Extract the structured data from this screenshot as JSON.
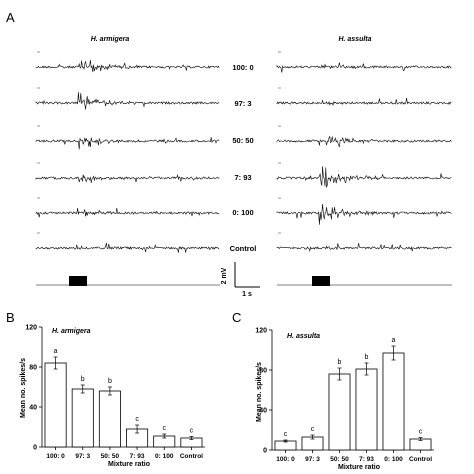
{
  "panels": {
    "A": "A",
    "B": "B",
    "C": "C"
  },
  "traces": {
    "left_species": "H. armigera",
    "right_species": "H. assulta",
    "ratios": [
      "100: 0",
      "97: 3",
      "50: 50",
      "7: 93",
      "0: 100",
      "Control"
    ],
    "scale_y": "2 mV",
    "scale_x": "1 s"
  },
  "chart_data": [
    {
      "type": "bar",
      "title": "H. armigera",
      "categories": [
        "100: 0",
        "97: 3",
        "50: 50",
        "7: 93",
        "0: 100",
        "Control"
      ],
      "values": [
        84,
        58,
        56,
        18,
        11,
        9
      ],
      "errors": [
        6,
        4,
        4,
        4,
        2,
        1.5
      ],
      "letters": [
        "a",
        "b",
        "b",
        "c",
        "c",
        "c"
      ],
      "xlabel": "Mixture ratio",
      "ylabel": "Mean no. spikes/s",
      "yticks": [
        0,
        40,
        80,
        120
      ],
      "ylim": [
        0,
        120
      ]
    },
    {
      "type": "bar",
      "title": "H. assulta",
      "categories": [
        "100: 0",
        "97: 3",
        "50: 50",
        "7: 93",
        "0: 100",
        "Control"
      ],
      "values": [
        9,
        13,
        76,
        81,
        97,
        11
      ],
      "errors": [
        1,
        2,
        6,
        6,
        7,
        1.5
      ],
      "letters": [
        "c",
        "c",
        "b",
        "b",
        "a",
        "c"
      ],
      "xlabel": "Mixture ratio",
      "ylabel": "Mean no. spikes/s",
      "yticks": [
        0,
        40,
        80,
        120
      ],
      "ylim": [
        0,
        120
      ]
    }
  ]
}
